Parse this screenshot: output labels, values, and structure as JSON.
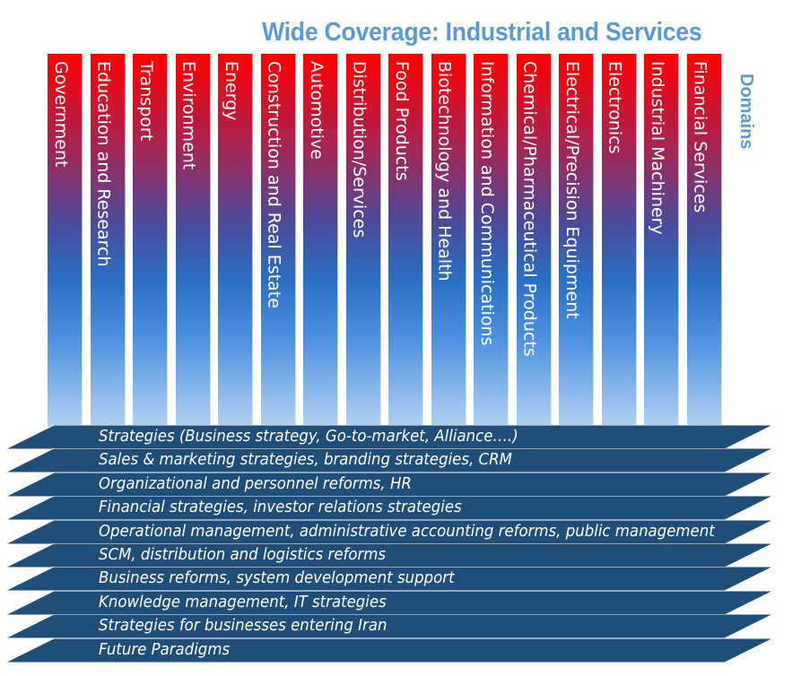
{
  "title": "Wide Coverage: Industrial and Services",
  "domains_label": "Domains",
  "domains": [
    "Government",
    "Education and Research",
    "Transport",
    "Environment",
    "Energy",
    "Construction and Real Estate",
    "Automotive",
    "Distribution/Services",
    "Food Products",
    "Biotechnology and Health",
    "Information and Communications",
    "Chemical/Pharmaceutical Products",
    "Electrical/Precision Equipment",
    "Electronics",
    "Industrial Machinery",
    "Financial Services"
  ],
  "services": [
    "Strategies (Business strategy, Go-to-market, Alliance….)",
    "Sales & marketing strategies, branding strategies, CRM",
    "Organizational and personnel reforms, HR",
    "Financial strategies, investor relations strategies",
    "Operational management, administrative accounting reforms, public management",
    "SCM, distribution and logistics reforms",
    "Business reforms, system development support",
    "Knowledge management, IT strategies",
    "Strategies for businesses entering Iran",
    "Future Paradigms"
  ],
  "colors": {
    "title": "#5b9bd5",
    "column_top": "#ff0000",
    "column_bottom": "#b6d4f2",
    "band": "#1f4e79",
    "band_edge": "#163a5c"
  }
}
